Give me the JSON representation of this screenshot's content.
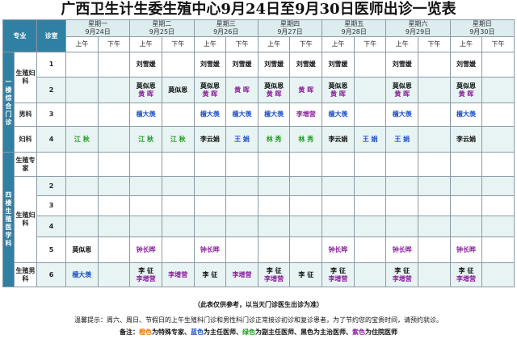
{
  "title": "广西卫生计生委生殖中心9月24日至9月30日医师出诊一览表",
  "header": {
    "specialty": "专业",
    "room": "诊室"
  },
  "days": [
    {
      "week": "星期一",
      "date": "9月24日"
    },
    {
      "week": "星期二",
      "date": "9月25日"
    },
    {
      "week": "星期三",
      "date": "9月26日"
    },
    {
      "week": "星期四",
      "date": "9月27日"
    },
    {
      "week": "星期五",
      "date": "9月28日"
    },
    {
      "week": "星期六",
      "date": "9月29日"
    },
    {
      "week": "星期日",
      "date": "9月30日"
    }
  ],
  "ampm": {
    "am": "上午",
    "pm": "下午"
  },
  "groups": {
    "g1": "一楼综合门诊",
    "g2": "四楼生殖医学科"
  },
  "depts": {
    "d1": "生殖妇科",
    "d2": "男科",
    "d3": "妇科",
    "d4": "生殖专家",
    "d5": "生殖妇科",
    "d6": "生殖男科"
  },
  "colors": {
    "orange": "#e87a00",
    "blue": "#1d4fc4",
    "green": "#1f9a1f",
    "black": "#111111",
    "purple": "#8b1f9c",
    "header": "#2f80a3"
  },
  "rows": [
    {
      "room": "1",
      "cells": [
        [],
        [],
        [
          {
            "n": "刘雪媛",
            "c": "black"
          }
        ],
        [],
        [
          {
            "n": "刘雪媛",
            "c": "black"
          }
        ],
        [
          {
            "n": "刘雪媛",
            "c": "black"
          }
        ],
        [
          {
            "n": "刘雪媛",
            "c": "black"
          }
        ],
        [
          {
            "n": "刘雪媛",
            "c": "black"
          }
        ],
        [
          {
            "n": "刘雪媛",
            "c": "black"
          }
        ],
        [],
        [
          {
            "n": "刘雪媛",
            "c": "black"
          }
        ],
        [],
        [
          {
            "n": "刘雪媛",
            "c": "black"
          }
        ],
        []
      ]
    },
    {
      "room": "2",
      "cells": [
        [],
        [],
        [
          {
            "n": "莫似恩",
            "c": "black"
          },
          {
            "n": "黄 晖",
            "c": "purple"
          }
        ],
        [
          {
            "n": "莫似恩",
            "c": "black"
          }
        ],
        [
          {
            "n": "莫似恩",
            "c": "black"
          },
          {
            "n": "黄 晖",
            "c": "purple"
          }
        ],
        [
          {
            "n": "黄 晖",
            "c": "purple"
          }
        ],
        [
          {
            "n": "莫似恩",
            "c": "black"
          },
          {
            "n": "黄 晖",
            "c": "purple"
          }
        ],
        [
          {
            "n": "黄 晖",
            "c": "purple"
          }
        ],
        [
          {
            "n": "莫似恩",
            "c": "black"
          },
          {
            "n": "黄 晖",
            "c": "purple"
          }
        ],
        [],
        [
          {
            "n": "莫似恩",
            "c": "black"
          },
          {
            "n": "黄 晖",
            "c": "purple"
          }
        ],
        [],
        [
          {
            "n": "莫似恩",
            "c": "black"
          },
          {
            "n": "黄 晖",
            "c": "purple"
          }
        ],
        []
      ]
    },
    {
      "room": "3",
      "cells": [
        [],
        [],
        [
          {
            "n": "檀大羡",
            "c": "blue"
          }
        ],
        [],
        [
          {
            "n": "檀大羡",
            "c": "blue"
          }
        ],
        [
          {
            "n": "檀大羡",
            "c": "blue"
          }
        ],
        [
          {
            "n": "檀大羡",
            "c": "blue"
          }
        ],
        [
          {
            "n": "李增营",
            "c": "purple"
          }
        ],
        [
          {
            "n": "檀大羡",
            "c": "blue"
          }
        ],
        [],
        [
          {
            "n": "檀大羡",
            "c": "blue"
          }
        ],
        [],
        [
          {
            "n": "檀大羡",
            "c": "blue"
          }
        ],
        []
      ]
    },
    {
      "room": "4",
      "cells": [
        [
          {
            "n": "江 秋",
            "c": "green"
          }
        ],
        [],
        [
          {
            "n": "江 秋",
            "c": "green"
          }
        ],
        [
          {
            "n": "江 秋",
            "c": "green"
          }
        ],
        [
          {
            "n": "李云娟",
            "c": "black"
          }
        ],
        [
          {
            "n": "王 娟",
            "c": "blue"
          }
        ],
        [
          {
            "n": "林 秀",
            "c": "green"
          }
        ],
        [
          {
            "n": "林 秀",
            "c": "green"
          }
        ],
        [
          {
            "n": "李云娟",
            "c": "black"
          }
        ],
        [
          {
            "n": "王 娟",
            "c": "blue"
          }
        ],
        [
          {
            "n": "王 娟",
            "c": "blue"
          }
        ],
        [],
        [
          {
            "n": "李云娟",
            "c": "black"
          }
        ],
        []
      ]
    },
    {
      "room": "",
      "cells": [
        [],
        [],
        [],
        [],
        [],
        [],
        [],
        [],
        [],
        [],
        [],
        [],
        [],
        []
      ]
    },
    {
      "room": "2",
      "cells": [
        [],
        [],
        [],
        [],
        [],
        [],
        [],
        [],
        [],
        [],
        [],
        [],
        [],
        []
      ]
    },
    {
      "room": "3",
      "cells": [
        [],
        [],
        [],
        [],
        [],
        [],
        [],
        [],
        [],
        [],
        [],
        [],
        [],
        []
      ]
    },
    {
      "room": "4",
      "cells": [
        [],
        [],
        [],
        [],
        [],
        [],
        [],
        [],
        [],
        [],
        [],
        [],
        [],
        []
      ]
    },
    {
      "room": "5",
      "cells": [
        [
          {
            "n": "莫似恩",
            "c": "black"
          }
        ],
        [],
        [
          {
            "n": "钟长晔",
            "c": "purple"
          }
        ],
        [],
        [
          {
            "n": "钟长晔",
            "c": "purple"
          }
        ],
        [],
        [],
        [],
        [
          {
            "n": "钟长晔",
            "c": "purple"
          }
        ],
        [],
        [
          {
            "n": "钟长晔",
            "c": "purple"
          }
        ],
        [],
        [
          {
            "n": "钟长晔",
            "c": "purple"
          }
        ],
        []
      ]
    },
    {
      "room": "6",
      "cells": [
        [
          {
            "n": "檀大羡",
            "c": "blue"
          }
        ],
        [],
        [
          {
            "n": "李 征",
            "c": "black"
          },
          {
            "n": "李增营",
            "c": "purple"
          }
        ],
        [
          {
            "n": "李增营",
            "c": "purple"
          }
        ],
        [
          {
            "n": "李 征",
            "c": "black"
          }
        ],
        [
          {
            "n": "李增营",
            "c": "purple"
          }
        ],
        [
          {
            "n": "李 征",
            "c": "black"
          },
          {
            "n": "李增营",
            "c": "purple"
          }
        ],
        [
          {
            "n": "李 征",
            "c": "black"
          }
        ],
        [
          {
            "n": "李 征",
            "c": "black"
          },
          {
            "n": "李增营",
            "c": "purple"
          }
        ],
        [],
        [
          {
            "n": "李 征",
            "c": "black"
          },
          {
            "n": "李增营",
            "c": "purple"
          }
        ],
        [],
        [
          {
            "n": "李 征",
            "c": "black"
          },
          {
            "n": "李增营",
            "c": "purple"
          }
        ],
        []
      ]
    }
  ],
  "footer": {
    "disclaimer": "（此表仅供参考，以当天门诊医生出诊为准）",
    "tip": "温馨提示：周六、周日、节假日的上午生殖科门诊和男性科门诊正常接诊初诊和复诊患者，为了节约您的宝贵时间，请预约就诊。",
    "legend": {
      "prefix": "备注：",
      "orange": "橙色",
      "t1": "为特殊专家、",
      "blue": "蓝色",
      "t2": "为主任医师、",
      "green": "绿色",
      "t3": "为副主任医师、黑色为主治医师、",
      "purple": "紫色",
      "t4": "为住院医师"
    }
  }
}
